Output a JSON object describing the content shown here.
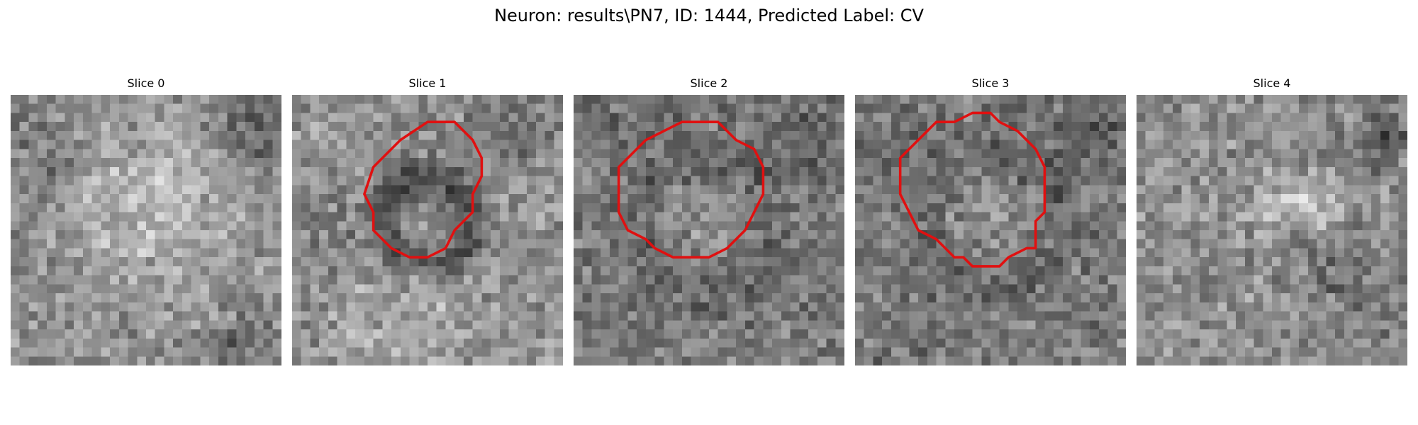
{
  "figure": {
    "title": "Neuron: results\\PN7, ID: 1444, Predicted Label: CV",
    "contour_color": "#e01010",
    "colormap": "gray"
  },
  "slices": [
    {
      "label": "Slice 0",
      "has_contour": false,
      "contour": [],
      "seed": 11,
      "pattern": "blob0"
    },
    {
      "label": "Slice 1",
      "has_contour": true,
      "contour": [
        [
          15,
          3
        ],
        [
          18,
          3
        ],
        [
          20,
          5
        ],
        [
          21,
          7
        ],
        [
          21,
          9
        ],
        [
          20,
          11
        ],
        [
          20,
          13
        ],
        [
          18,
          15
        ],
        [
          17,
          17
        ],
        [
          15,
          18
        ],
        [
          13,
          18
        ],
        [
          11,
          17
        ],
        [
          10,
          16
        ],
        [
          9,
          15
        ],
        [
          9,
          13
        ],
        [
          8,
          11
        ],
        [
          9,
          8
        ],
        [
          11,
          6
        ],
        [
          12,
          5
        ]
      ],
      "seed": 23,
      "pattern": "dark_ring"
    },
    {
      "label": "Slice 2",
      "has_contour": true,
      "contour": [
        [
          12,
          3
        ],
        [
          16,
          3
        ],
        [
          18,
          5
        ],
        [
          20,
          6
        ],
        [
          21,
          8
        ],
        [
          21,
          11
        ],
        [
          20,
          13
        ],
        [
          19,
          15
        ],
        [
          18,
          16
        ],
        [
          17,
          17
        ],
        [
          15,
          18
        ],
        [
          11,
          18
        ],
        [
          9,
          17
        ],
        [
          8,
          16
        ],
        [
          6,
          15
        ],
        [
          5,
          13
        ],
        [
          5,
          8
        ],
        [
          6,
          7
        ],
        [
          8,
          5
        ],
        [
          10,
          4
        ]
      ],
      "seed": 37,
      "pattern": "bright_center"
    },
    {
      "label": "Slice 3",
      "has_contour": true,
      "contour": [
        [
          13,
          2
        ],
        [
          15,
          2
        ],
        [
          16,
          3
        ],
        [
          18,
          4
        ],
        [
          20,
          6
        ],
        [
          21,
          8
        ],
        [
          21,
          13
        ],
        [
          20,
          14
        ],
        [
          20,
          17
        ],
        [
          19,
          17
        ],
        [
          17,
          18
        ],
        [
          16,
          19
        ],
        [
          13,
          19
        ],
        [
          12,
          18
        ],
        [
          11,
          18
        ],
        [
          9,
          16
        ],
        [
          7,
          15
        ],
        [
          6,
          13
        ],
        [
          5,
          11
        ],
        [
          5,
          7
        ],
        [
          6,
          6
        ],
        [
          7,
          5
        ],
        [
          8,
          4
        ],
        [
          9,
          3
        ],
        [
          11,
          3
        ]
      ],
      "seed": 51,
      "pattern": "bright_center"
    },
    {
      "label": "Slice 4",
      "has_contour": false,
      "contour": [],
      "seed": 67,
      "pattern": "blob4"
    }
  ]
}
